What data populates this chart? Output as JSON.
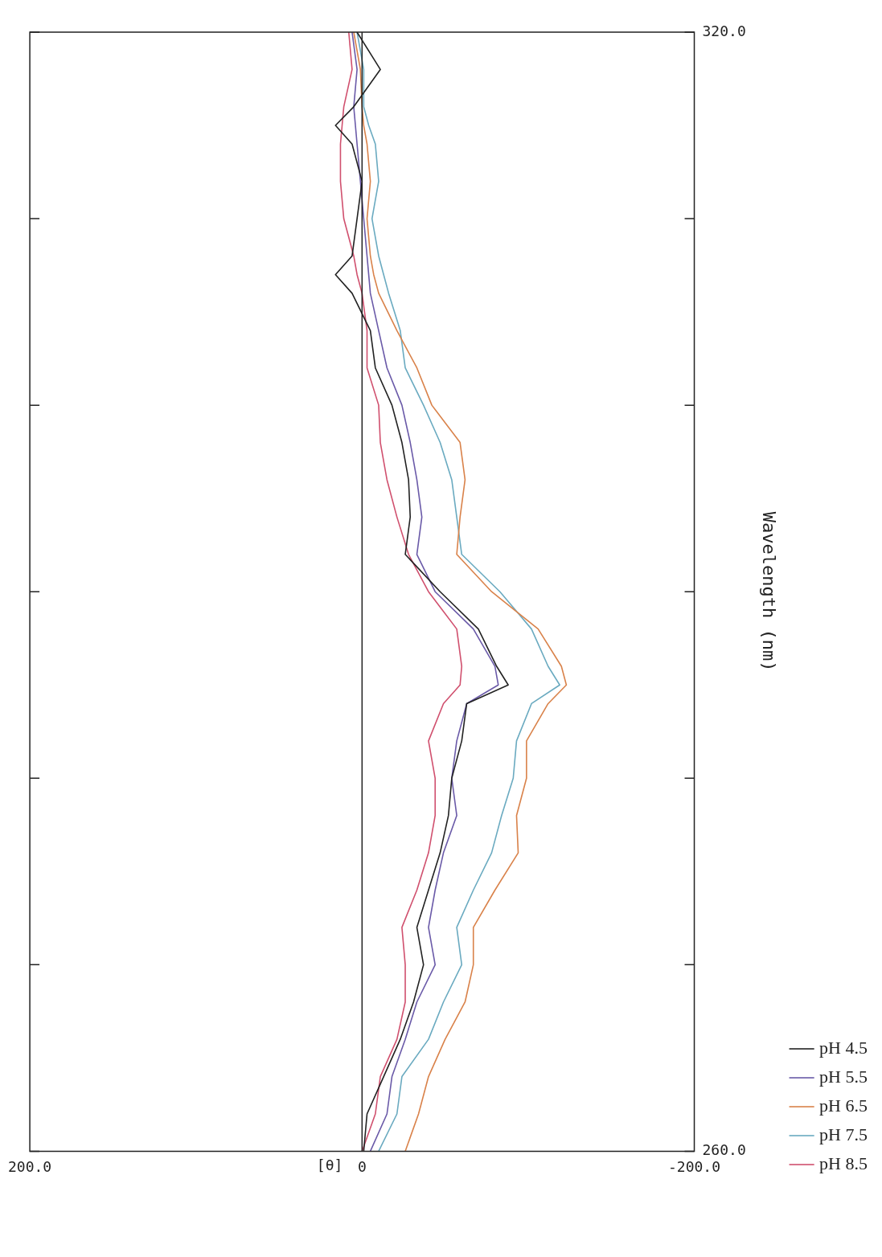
{
  "chart_data": {
    "type": "line",
    "xlabel": "[θ]",
    "ylabel": "Wavelength (nm)",
    "series": [
      {
        "name": "pH 4.5",
        "color": "#222222",
        "x": [
          -1,
          -3,
          -13,
          -23,
          -31,
          -37,
          -33,
          -40,
          -47,
          -52,
          -54,
          -60,
          -63,
          -88,
          -81,
          -70,
          -47,
          -26,
          -29,
          -28,
          -24,
          -18,
          -8,
          -5,
          6,
          16,
          6,
          3,
          0,
          6,
          16,
          5,
          -11,
          3
        ],
        "values": [
          260,
          262,
          264,
          266,
          268,
          270,
          272,
          274,
          276,
          278,
          280,
          282,
          284,
          285,
          286,
          288,
          290,
          292,
          294,
          296,
          298,
          300,
          302,
          304,
          306,
          307,
          308,
          310,
          312,
          314,
          315,
          316,
          318,
          320
        ]
      },
      {
        "name": "pH 5.5",
        "color": "#6a5aa8",
        "x": [
          -5,
          -15,
          -18,
          -26,
          -33,
          -44,
          -40,
          -44,
          -49,
          -57,
          -54,
          -57,
          -63,
          -82,
          -80,
          -67,
          -44,
          -33,
          -36,
          -33,
          -29,
          -24,
          -15,
          -10,
          -5,
          -4,
          -3,
          -1,
          1,
          3,
          4,
          5,
          3,
          6
        ],
        "values": [
          260,
          262,
          264,
          266,
          268,
          270,
          272,
          274,
          276,
          278,
          280,
          282,
          284,
          285,
          286,
          288,
          290,
          292,
          294,
          296,
          298,
          300,
          302,
          304,
          306,
          307,
          308,
          310,
          312,
          314,
          315,
          316,
          318,
          320
        ]
      },
      {
        "name": "pH 6.5",
        "color": "#d9824a",
        "x": [
          -26,
          -34,
          -40,
          -50,
          -62,
          -67,
          -67,
          -80,
          -94,
          -93,
          -99,
          -99,
          -112,
          -123,
          -120,
          -106,
          -78,
          -57,
          -59,
          -62,
          -59,
          -42,
          -33,
          -21,
          -10,
          -7,
          -5,
          -3,
          -5,
          -3,
          -1,
          0,
          1,
          5
        ],
        "values": [
          260,
          262,
          264,
          266,
          268,
          270,
          272,
          274,
          276,
          278,
          280,
          282,
          284,
          285,
          286,
          288,
          290,
          292,
          294,
          296,
          298,
          300,
          302,
          304,
          306,
          307,
          308,
          310,
          312,
          314,
          315,
          316,
          318,
          320
        ]
      },
      {
        "name": "pH 7.5",
        "color": "#6aaac0",
        "x": [
          -10,
          -21,
          -24,
          -40,
          -49,
          -60,
          -57,
          -67,
          -78,
          -84,
          -91,
          -93,
          -102,
          -119,
          -112,
          -102,
          -83,
          -60,
          -57,
          -54,
          -47,
          -37,
          -26,
          -23,
          -16,
          -13,
          -10,
          -6,
          -10,
          -8,
          -4,
          -1,
          -1,
          3
        ],
        "values": [
          260,
          262,
          264,
          266,
          268,
          270,
          272,
          274,
          276,
          278,
          280,
          282,
          284,
          285,
          286,
          288,
          290,
          292,
          294,
          296,
          298,
          300,
          302,
          304,
          306,
          307,
          308,
          310,
          312,
          314,
          315,
          316,
          318,
          320
        ]
      },
      {
        "name": "pH 8.5",
        "color": "#d0506e",
        "x": [
          0,
          -8,
          -11,
          -21,
          -26,
          -26,
          -24,
          -33,
          -40,
          -44,
          -44,
          -40,
          -49,
          -59,
          -60,
          -57,
          -40,
          -28,
          -21,
          -15,
          -11,
          -10,
          -3,
          -3,
          0,
          3,
          5,
          11,
          13,
          13,
          12,
          11,
          6,
          8
        ],
        "values": [
          260,
          262,
          264,
          266,
          268,
          270,
          272,
          274,
          276,
          278,
          280,
          282,
          284,
          285,
          286,
          288,
          290,
          292,
          294,
          296,
          298,
          300,
          302,
          304,
          306,
          307,
          308,
          310,
          312,
          314,
          315,
          316,
          318,
          320
        ]
      }
    ],
    "xlim": [
      200,
      -200
    ],
    "xticks": [
      {
        "value": 200,
        "label": "200.0"
      },
      0,
      {
        "value": -200,
        "label": "-200.0"
      }
    ],
    "ylim": [
      260,
      320
    ],
    "yticks": [
      {
        "value": 260,
        "label": "260.0"
      },
      {
        "value": 270,
        "label": null
      },
      {
        "value": 280,
        "label": null
      },
      {
        "value": 290,
        "label": null
      },
      {
        "value": 300,
        "label": null
      },
      {
        "value": 310,
        "label": null
      },
      {
        "value": 320,
        "label": "320.0"
      }
    ],
    "ref_lines": [
      {
        "axis": "x",
        "value": 0,
        "color": "#222222"
      }
    ],
    "legend": "bottom right"
  }
}
